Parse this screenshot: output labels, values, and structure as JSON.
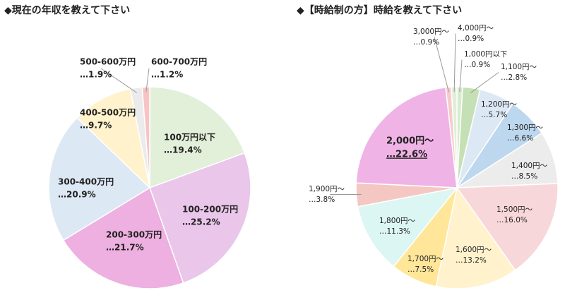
{
  "chart_data": [
    {
      "type": "pie",
      "title": "◆現在の年収を教えて下さい",
      "categories": [
        "100万円以下",
        "100-200万円",
        "200-300万円",
        "300-400万円",
        "400-500万円",
        "500-600万円",
        "600-700万円"
      ],
      "values": [
        19.4,
        25.2,
        21.7,
        20.9,
        9.7,
        1.9,
        1.2
      ],
      "value_labels": [
        "…19.4%",
        "…25.2%",
        "…21.7%",
        "…20.9%",
        "…9.7%",
        "…1.9%",
        "…1.2%"
      ],
      "colors": [
        "#e2efd9",
        "#e9c6ea",
        "#eeb0e0",
        "#dde8f5",
        "#fff2cc",
        "#ebebeb",
        "#f6c4c4"
      ]
    },
    {
      "type": "pie",
      "title": "◆【時給制の方】時給を教えて下さい",
      "categories": [
        "1,000円以下",
        "1,100円～",
        "1,200円～",
        "1,300円～",
        "1,400円～",
        "1,500円～",
        "1,600円～",
        "1,700円～",
        "1,800円～",
        "1,900円～",
        "2,000円～",
        "3,000円～",
        "4,000円～"
      ],
      "values": [
        0.9,
        2.8,
        5.7,
        6.6,
        8.5,
        16,
        13.2,
        7.5,
        11.3,
        3.8,
        22.6,
        0.9,
        0.9
      ],
      "value_labels": [
        "…0.9%",
        "…2.8%",
        "…5.7%",
        "…6.6%",
        "…8.5%",
        "…16.0%",
        "…13.2%",
        "…7.5%",
        "…11.3%",
        "…3.8%",
        "…22.6%",
        "…0.9%",
        "…0.9%"
      ],
      "colors": [
        "#d6ebcf",
        "#c5e0b4",
        "#dde8f5",
        "#bdd7ee",
        "#ececec",
        "#f8d7da",
        "#fff2cc",
        "#ffe699",
        "#dcf6f3",
        "#f4c7c3",
        "#efb3e6",
        "#f8cbcb",
        "#e2efd9"
      ]
    }
  ]
}
